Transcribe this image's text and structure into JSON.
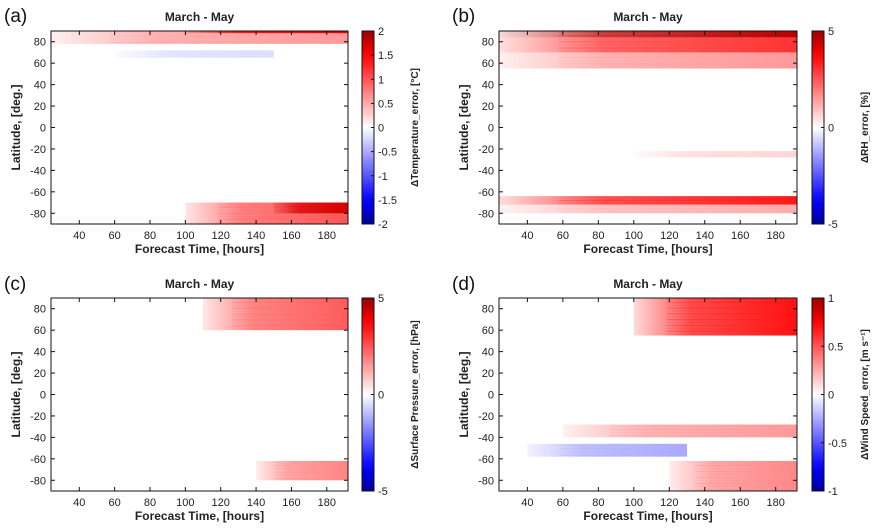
{
  "chart_data": [
    {
      "type": "heatmap",
      "panel_label": "(a)",
      "title": "March - May",
      "xlabel": "Forecast Time, [hours]",
      "ylabel": "Latitude, [deg.]",
      "colorbar_label": "ΔTemperature_error, [°C]",
      "xlim": [
        24,
        192
      ],
      "ylim": [
        -90,
        90
      ],
      "x_ticks": [
        "40",
        "60",
        "80",
        "100",
        "120",
        "140",
        "160",
        "180"
      ],
      "y_ticks": [
        "80",
        "60",
        "40",
        "20",
        "0",
        "-20",
        "-40",
        "-60",
        "-80"
      ],
      "colorbar_ticks": [
        "2",
        "1.5",
        "1",
        "0.5",
        "0",
        "-0.5",
        "-1",
        "-1.5",
        "-2"
      ],
      "clim": [
        -2,
        2
      ],
      "features": [
        {
          "lat": [
            78,
            90
          ],
          "x": [
            24,
            192
          ],
          "value": 0.6
        },
        {
          "lat": [
            88,
            90
          ],
          "x": [
            100,
            192
          ],
          "value": 1.6
        },
        {
          "lat": [
            65,
            72
          ],
          "x": [
            60,
            150
          ],
          "value": -0.2
        },
        {
          "lat": [
            -90,
            -70
          ],
          "x": [
            100,
            192
          ],
          "value": 1.0
        },
        {
          "lat": [
            -80,
            -70
          ],
          "x": [
            150,
            192
          ],
          "value": 1.7
        }
      ]
    },
    {
      "type": "heatmap",
      "panel_label": "(b)",
      "title": "March - May",
      "xlabel": "Forecast Time, [hours]",
      "ylabel": "Latitude, [deg.]",
      "colorbar_label": "ΔRH_error, [%]",
      "xlim": [
        24,
        192
      ],
      "ylim": [
        -90,
        90
      ],
      "x_ticks": [
        "40",
        "60",
        "80",
        "100",
        "120",
        "140",
        "160",
        "180"
      ],
      "y_ticks": [
        "80",
        "60",
        "40",
        "20",
        "0",
        "-20",
        "-40",
        "-60",
        "-80"
      ],
      "colorbar_ticks": [
        "5",
        "0",
        "-5"
      ],
      "clim": [
        -5,
        5
      ],
      "features": [
        {
          "lat": [
            84,
            90
          ],
          "x": [
            24,
            192
          ],
          "value": 4.6
        },
        {
          "lat": [
            70,
            84
          ],
          "x": [
            24,
            192
          ],
          "value": 3.0
        },
        {
          "lat": [
            55,
            70
          ],
          "x": [
            24,
            192
          ],
          "value": 1.5
        },
        {
          "lat": [
            -72,
            -64
          ],
          "x": [
            24,
            192
          ],
          "value": 3.4
        },
        {
          "lat": [
            -80,
            -72
          ],
          "x": [
            24,
            192
          ],
          "value": 1.2
        },
        {
          "lat": [
            -28,
            -22
          ],
          "x": [
            100,
            192
          ],
          "value": 0.6
        }
      ]
    },
    {
      "type": "heatmap",
      "panel_label": "(c)",
      "title": "March - May",
      "xlabel": "Forecast Time, [hours]",
      "ylabel": "Latitude, [deg.]",
      "colorbar_label": "ΔSurface Pressure_error, [hPa]",
      "xlim": [
        24,
        192
      ],
      "ylim": [
        -90,
        90
      ],
      "x_ticks": [
        "40",
        "60",
        "80",
        "100",
        "120",
        "140",
        "160",
        "180"
      ],
      "y_ticks": [
        "80",
        "60",
        "40",
        "20",
        "0",
        "-20",
        "-40",
        "-60",
        "-80"
      ],
      "colorbar_ticks": [
        "5",
        "0",
        "-5"
      ],
      "clim": [
        -5,
        5
      ],
      "features": [
        {
          "lat": [
            60,
            90
          ],
          "x": [
            110,
            192
          ],
          "value": 2.4
        },
        {
          "lat": [
            -80,
            -62
          ],
          "x": [
            140,
            192
          ],
          "value": 1.8
        }
      ]
    },
    {
      "type": "heatmap",
      "panel_label": "(d)",
      "title": "March - May",
      "xlabel": "Forecast Time, [hours]",
      "ylabel": "Latitude, [deg.]",
      "colorbar_label": "ΔWind Speed_error, [m s⁻¹]",
      "xlim": [
        24,
        192
      ],
      "ylim": [
        -90,
        90
      ],
      "x_ticks": [
        "40",
        "60",
        "80",
        "100",
        "120",
        "140",
        "160",
        "180"
      ],
      "y_ticks": [
        "80",
        "60",
        "40",
        "20",
        "0",
        "-20",
        "-40",
        "-60",
        "-80"
      ],
      "colorbar_ticks": [
        "1",
        "0.5",
        "0",
        "-0.5",
        "-1"
      ],
      "clim": [
        -1,
        1
      ],
      "features": [
        {
          "lat": [
            55,
            90
          ],
          "x": [
            100,
            192
          ],
          "value": 0.7
        },
        {
          "lat": [
            -40,
            -28
          ],
          "x": [
            60,
            192
          ],
          "value": 0.3
        },
        {
          "lat": [
            -58,
            -46
          ],
          "x": [
            40,
            130
          ],
          "value": -0.25
        },
        {
          "lat": [
            -90,
            -62
          ],
          "x": [
            120,
            192
          ],
          "value": 0.35
        }
      ]
    }
  ]
}
